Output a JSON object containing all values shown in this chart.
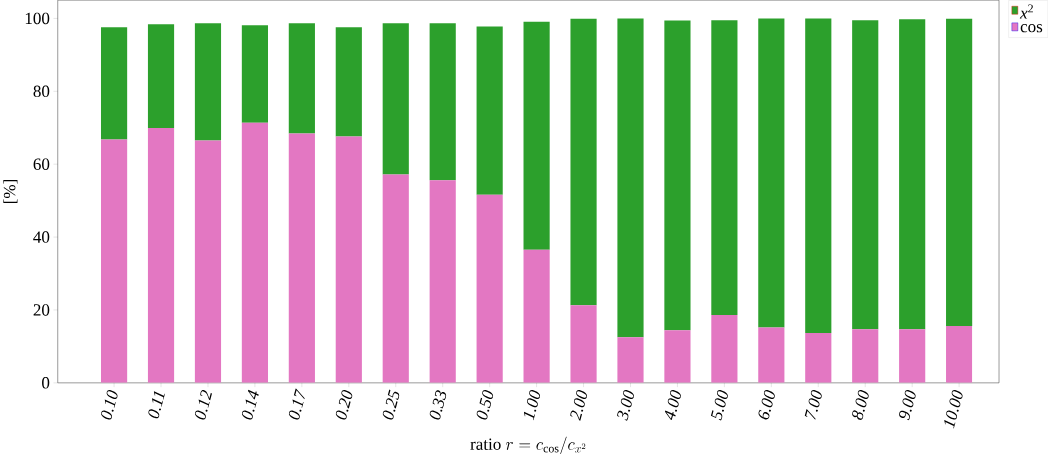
{
  "chart_data": {
    "type": "bar",
    "stacked": true,
    "ylabel": "[%]",
    "xlabel": "\\mathrm{ratio}\\ r = c_{\\cos}/c_{x^2}",
    "categories": [
      "0.10",
      "0.11",
      "0.12",
      "0.14",
      "0.17",
      "0.20",
      "0.25",
      "0.33",
      "0.50",
      "1.00",
      "2.00",
      "3.00",
      "4.00",
      "5.00",
      "6.00",
      "7.00",
      "8.00",
      "9.00",
      "10.00"
    ],
    "series": [
      {
        "name": "cos",
        "color": "#e377c2",
        "values": [
          66.8,
          69.9,
          66.5,
          71.4,
          68.4,
          67.6,
          57.2,
          55.6,
          51.6,
          36.5,
          21.3,
          12.5,
          14.4,
          18.6,
          15.2,
          13.7,
          14.7,
          14.7,
          15.6
        ]
      },
      {
        "name": "*x*$^{2}$",
        "color": "#2ca02c",
        "values": [
          30.8,
          28.5,
          32.2,
          26.7,
          30.3,
          30.0,
          41.5,
          43.1,
          46.2,
          62.6,
          78.6,
          87.5,
          85.0,
          80.9,
          84.8,
          86.3,
          84.8,
          85.1,
          84.3
        ]
      }
    ],
    "ylim": [
      0,
      105
    ],
    "yticks": [
      0,
      20,
      40,
      60,
      80,
      100
    ],
    "grid": false,
    "legend": "top right"
  }
}
